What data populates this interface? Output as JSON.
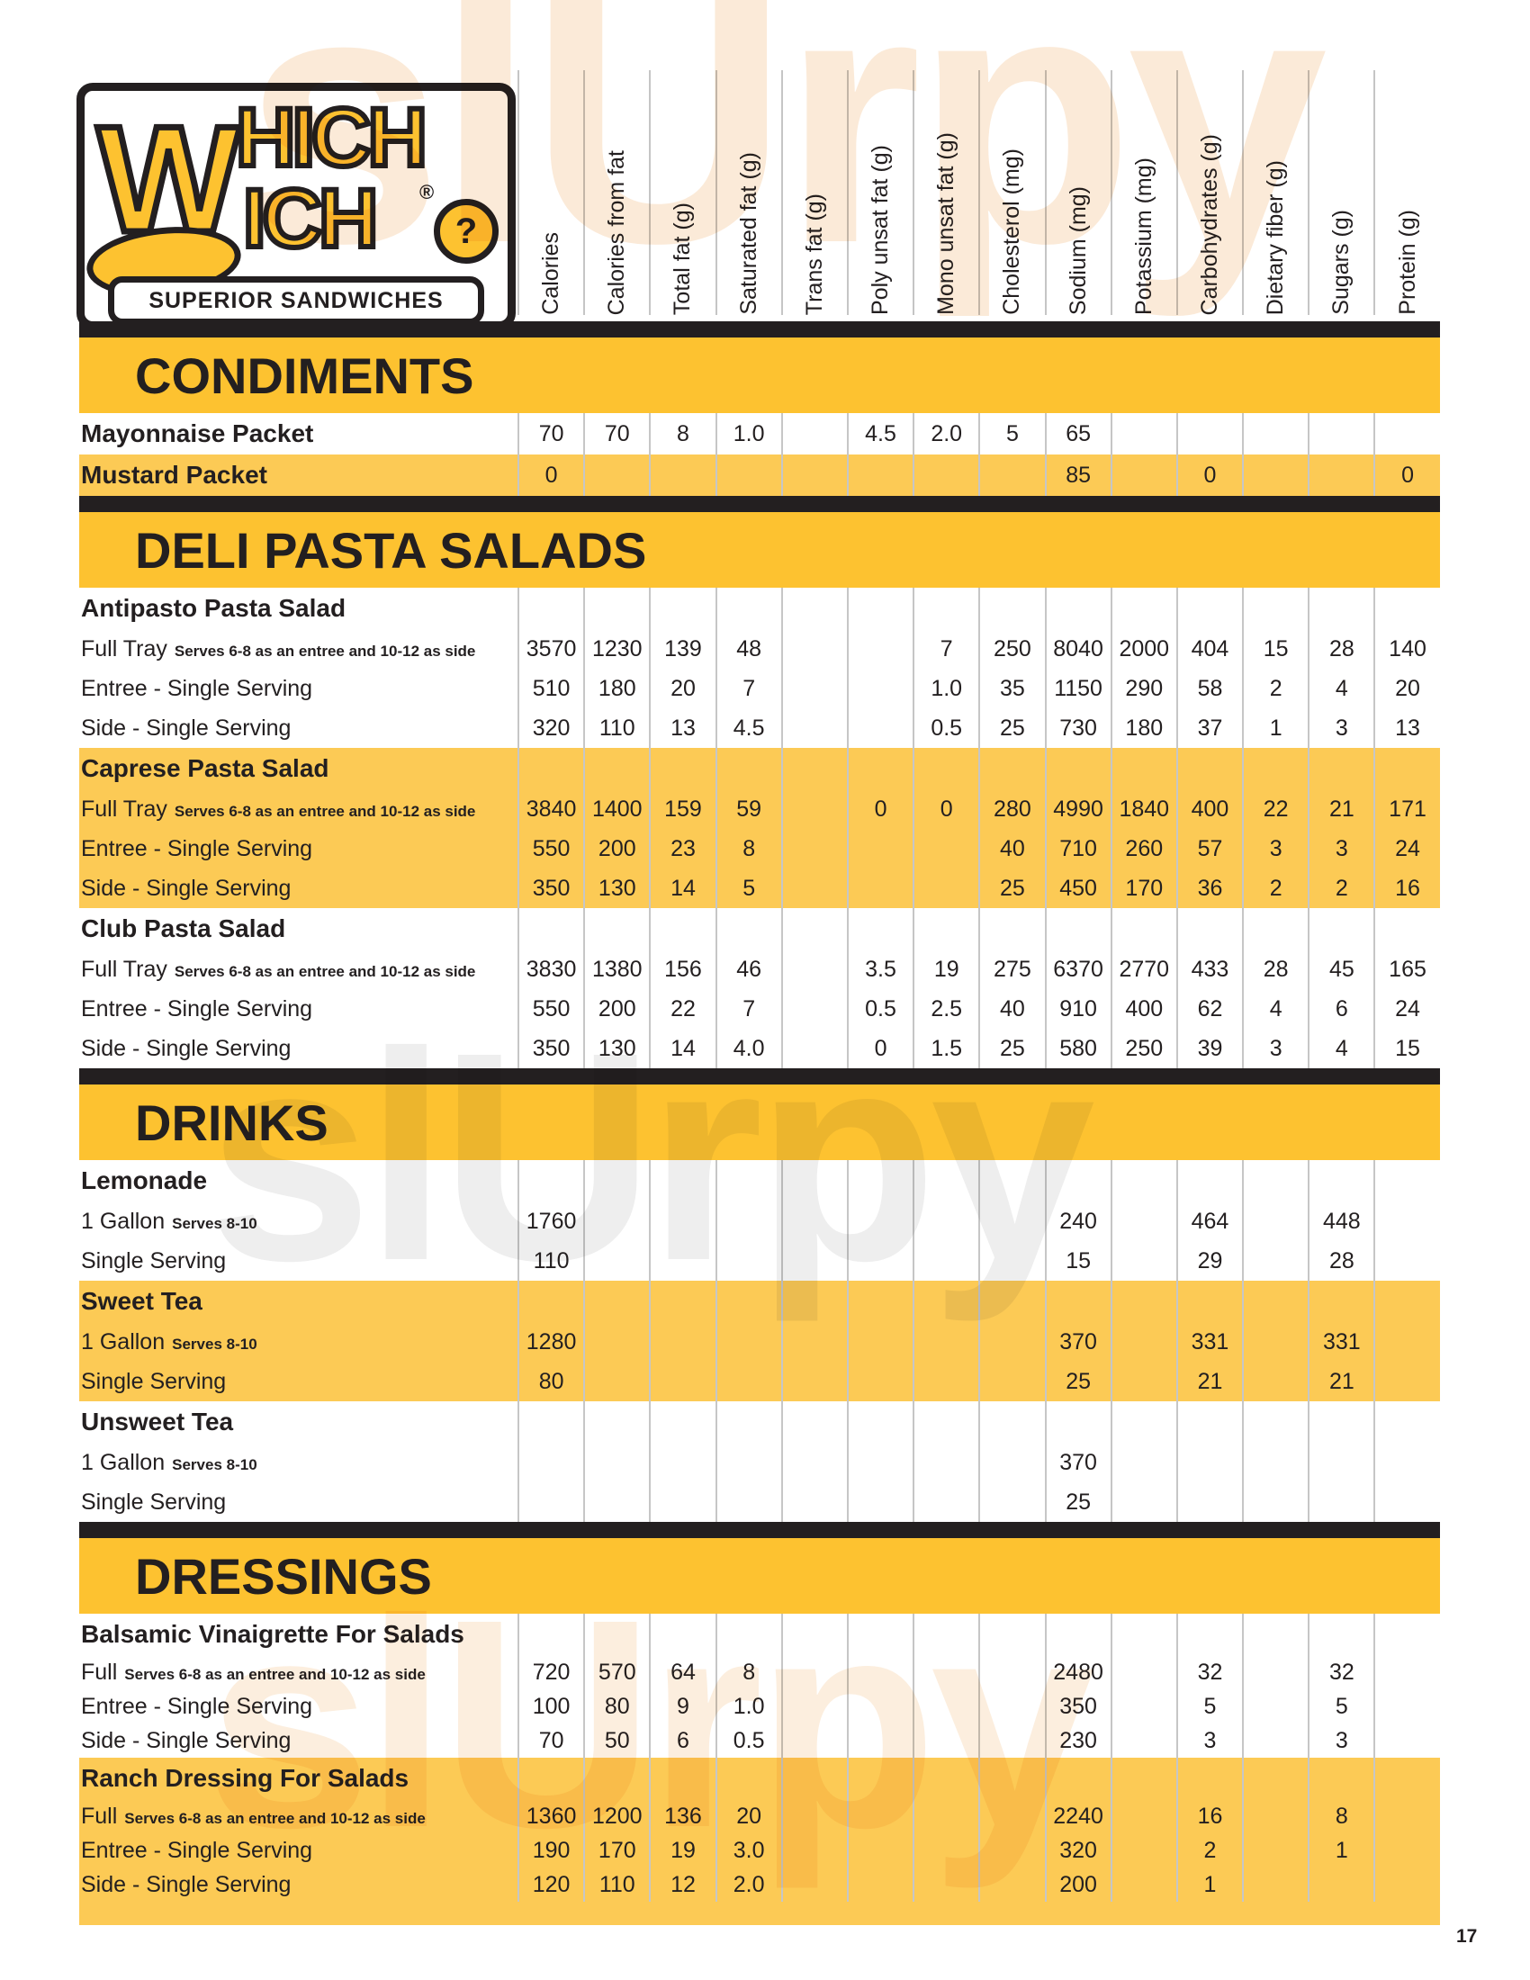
{
  "page_number": "17",
  "watermark": "slUrpy",
  "logo": {
    "big_w": "W",
    "top_rest": "HICH",
    "bottom_rest": "ICH",
    "question_mark": "?",
    "registered": "®",
    "tagline": "SUPERIOR SANDWICHES"
  },
  "columns": [
    "Calories",
    "Calories from fat",
    "Total fat (g)",
    "Saturated fat (g)",
    "Trans fat (g)",
    "Poly unsat fat (g)",
    "Mono unsat fat (g)",
    "Cholesterol (mg)",
    "Sodium (mg)",
    "Potassium (mg)",
    "Carbohydrates (g)",
    "Dietary fiber (g)",
    "Sugars (g)",
    "Protein (g)"
  ],
  "colors": {
    "yellow_banner": "#FDC230",
    "yellow_stripe": "#FCCA55",
    "black": "#231F20",
    "gridline": "#C6C6C6"
  },
  "sections": [
    {
      "title": "CONDIMENTS",
      "compact": false,
      "items": [
        {
          "name": "Mayonnaise Packet",
          "striped": false,
          "values": [
            "70",
            "70",
            "8",
            "1.0",
            "",
            "4.5",
            "2.0",
            "5",
            "65",
            "",
            "",
            "",
            "",
            ""
          ],
          "rows": []
        },
        {
          "name": "Mustard Packet",
          "striped": true,
          "values": [
            "0",
            "",
            "",
            "",
            "",
            "",
            "",
            "",
            "85",
            "",
            "0",
            "",
            "",
            "0"
          ],
          "rows": []
        }
      ]
    },
    {
      "title": "DELI PASTA SALADS",
      "compact": false,
      "items": [
        {
          "name": "Antipasto Pasta Salad",
          "striped": false,
          "rows": [
            {
              "label": "Full Tray",
              "note": "Serves 6-8 as an entree  and 10-12 as side",
              "values": [
                "3570",
                "1230",
                "139",
                "48",
                "",
                "",
                "7",
                "250",
                "8040",
                "2000",
                "404",
                "15",
                "28",
                "140"
              ]
            },
            {
              "label": "Entree - Single Serving",
              "note": "",
              "values": [
                "510",
                "180",
                "20",
                "7",
                "",
                "",
                "1.0",
                "35",
                "1150",
                "290",
                "58",
                "2",
                "4",
                "20"
              ]
            },
            {
              "label": "Side - Single Serving",
              "note": "",
              "values": [
                "320",
                "110",
                "13",
                "4.5",
                "",
                "",
                "0.5",
                "25",
                "730",
                "180",
                "37",
                "1",
                "3",
                "13"
              ]
            }
          ]
        },
        {
          "name": "Caprese Pasta Salad",
          "striped": true,
          "rows": [
            {
              "label": "Full Tray",
              "note": "Serves 6-8 as an entree  and 10-12 as side",
              "values": [
                "3840",
                "1400",
                "159",
                "59",
                "",
                "0",
                "0",
                "280",
                "4990",
                "1840",
                "400",
                "22",
                "21",
                "171"
              ]
            },
            {
              "label": "Entree - Single Serving",
              "note": "",
              "values": [
                "550",
                "200",
                "23",
                "8",
                "",
                "",
                "",
                "40",
                "710",
                "260",
                "57",
                "3",
                "3",
                "24"
              ]
            },
            {
              "label": "Side - Single Serving",
              "note": "",
              "values": [
                "350",
                "130",
                "14",
                "5",
                "",
                "",
                "",
                "25",
                "450",
                "170",
                "36",
                "2",
                "2",
                "16"
              ]
            }
          ]
        },
        {
          "name": "Club Pasta Salad",
          "striped": false,
          "rows": [
            {
              "label": "Full Tray",
              "note": "Serves 6-8 as an entree  and 10-12 as side",
              "values": [
                "3830",
                "1380",
                "156",
                "46",
                "",
                "3.5",
                "19",
                "275",
                "6370",
                "2770",
                "433",
                "28",
                "45",
                "165"
              ]
            },
            {
              "label": "Entree - Single Serving",
              "note": "",
              "values": [
                "550",
                "200",
                "22",
                "7",
                "",
                "0.5",
                "2.5",
                "40",
                "910",
                "400",
                "62",
                "4",
                "6",
                "24"
              ]
            },
            {
              "label": "Side - Single Serving",
              "note": "",
              "values": [
                "350",
                "130",
                "14",
                "4.0",
                "",
                "0",
                "1.5",
                "25",
                "580",
                "250",
                "39",
                "3",
                "4",
                "15"
              ]
            }
          ]
        }
      ]
    },
    {
      "title": "DRINKS",
      "compact": false,
      "items": [
        {
          "name": "Lemonade",
          "striped": false,
          "rows": [
            {
              "label": "1 Gallon",
              "note": "Serves 8-10",
              "values": [
                "1760",
                "",
                "",
                "",
                "",
                "",
                "",
                "",
                "240",
                "",
                "464",
                "",
                "448",
                ""
              ]
            },
            {
              "label": "Single Serving",
              "note": "",
              "values": [
                "110",
                "",
                "",
                "",
                "",
                "",
                "",
                "",
                "15",
                "",
                "29",
                "",
                "28",
                ""
              ]
            }
          ]
        },
        {
          "name": "Sweet Tea",
          "striped": true,
          "rows": [
            {
              "label": "1 Gallon",
              "note": "Serves 8-10",
              "values": [
                "1280",
                "",
                "",
                "",
                "",
                "",
                "",
                "",
                "370",
                "",
                "331",
                "",
                "331",
                ""
              ]
            },
            {
              "label": "Single Serving",
              "note": "",
              "values": [
                "80",
                "",
                "",
                "",
                "",
                "",
                "",
                "",
                "25",
                "",
                "21",
                "",
                "21",
                ""
              ]
            }
          ]
        },
        {
          "name": "Unsweet Tea",
          "striped": false,
          "rows": [
            {
              "label": "1 Gallon",
              "note": "Serves 8-10",
              "values": [
                "",
                "",
                "",
                "",
                "",
                "",
                "",
                "",
                "370",
                "",
                "",
                "",
                "",
                ""
              ]
            },
            {
              "label": "Single Serving",
              "note": "",
              "values": [
                "",
                "",
                "",
                "",
                "",
                "",
                "",
                "",
                "25",
                "",
                "",
                "",
                "",
                ""
              ]
            }
          ]
        }
      ]
    },
    {
      "title": "DRESSINGS",
      "compact": true,
      "items": [
        {
          "name": "Balsamic Vinaigrette For Salads",
          "striped": false,
          "rows": [
            {
              "label": "Full",
              "note": "Serves 6-8 as an entree  and 10-12 as side",
              "values": [
                "720",
                "570",
                "64",
                "8",
                "",
                "",
                "",
                "",
                "2480",
                "",
                "32",
                "",
                "32",
                ""
              ]
            },
            {
              "label": "Entree - Single Serving",
              "note": "",
              "values": [
                "100",
                "80",
                "9",
                "1.0",
                "",
                "",
                "",
                "",
                "350",
                "",
                "5",
                "",
                "5",
                ""
              ]
            },
            {
              "label": "Side - Single Serving",
              "note": "",
              "values": [
                "70",
                "50",
                "6",
                "0.5",
                "",
                "",
                "",
                "",
                "230",
                "",
                "3",
                "",
                "3",
                ""
              ]
            }
          ]
        },
        {
          "name": "Ranch Dressing For Salads",
          "striped": true,
          "rows": [
            {
              "label": "Full",
              "note": "Serves 6-8 as an entree  and 10-12 as side",
              "values": [
                "1360",
                "1200",
                "136",
                "20",
                "",
                "",
                "",
                "",
                "2240",
                "",
                "16",
                "",
                "8",
                ""
              ]
            },
            {
              "label": "Entree - Single Serving",
              "note": "",
              "values": [
                "190",
                "170",
                "19",
                "3.0",
                "",
                "",
                "",
                "",
                "320",
                "",
                "2",
                "",
                "1",
                ""
              ]
            },
            {
              "label": "Side - Single Serving",
              "note": "",
              "values": [
                "120",
                "110",
                "12",
                "2.0",
                "",
                "",
                "",
                "",
                "200",
                "",
                "1",
                "",
                "",
                ""
              ]
            }
          ]
        }
      ]
    }
  ]
}
